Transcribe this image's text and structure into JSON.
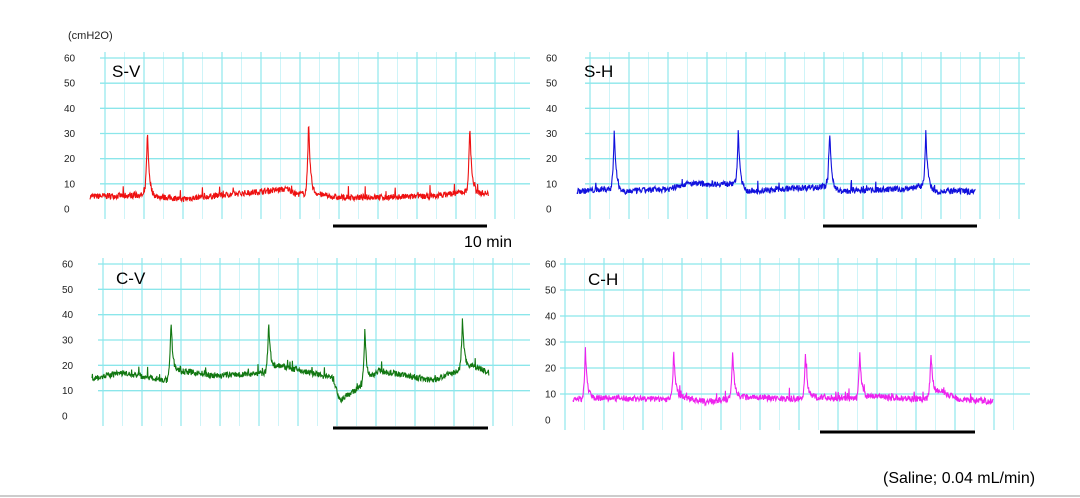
{
  "chart_data": {
    "type": "line",
    "unit_label": "(cmH2O)",
    "scale_bar_label": "10 min",
    "footnote": "(Saline; 0.04 mL/min)",
    "ylim": [
      0,
      60
    ],
    "yticks": [
      "0",
      "10",
      "20",
      "30",
      "40",
      "50",
      "60"
    ],
    "scale_bar_minutes": 10,
    "grid": true,
    "panels": [
      {
        "title": "S-V",
        "color": "#ee1111",
        "duration_min": 25.7,
        "baseline": [
          [
            0,
            5
          ],
          [
            3.5,
            5.5
          ],
          [
            4.2,
            5
          ],
          [
            6,
            4
          ],
          [
            12.8,
            8
          ],
          [
            13.2,
            6
          ],
          [
            14.6,
            6
          ],
          [
            16,
            4.5
          ],
          [
            22,
            5
          ],
          [
            24.3,
            7
          ],
          [
            25.7,
            6
          ]
        ],
        "spikes": [
          [
            3.7,
            32
          ],
          [
            14.1,
            35
          ],
          [
            24.5,
            34
          ]
        ]
      },
      {
        "title": "S-H",
        "color": "#1111dd",
        "duration_min": 25.7,
        "baseline": [
          [
            0,
            7
          ],
          [
            2.2,
            8
          ],
          [
            3,
            7
          ],
          [
            6,
            8
          ],
          [
            7,
            10
          ],
          [
            10.2,
            10
          ],
          [
            11,
            7
          ],
          [
            16,
            9
          ],
          [
            17,
            7
          ],
          [
            21,
            8
          ],
          [
            22.3,
            9
          ],
          [
            23,
            7
          ],
          [
            25.7,
            7
          ]
        ],
        "spikes": [
          [
            2.4,
            32
          ],
          [
            10.4,
            31
          ],
          [
            16.3,
            31
          ],
          [
            22.5,
            32
          ]
        ]
      },
      {
        "title": "C-V",
        "color": "#117711",
        "duration_min": 25.6,
        "baseline": [
          [
            0,
            15
          ],
          [
            2,
            17
          ],
          [
            4.9,
            14
          ],
          [
            5.5,
            18
          ],
          [
            8,
            16
          ],
          [
            11.2,
            17
          ],
          [
            12,
            20
          ],
          [
            15.5,
            15
          ],
          [
            16,
            6
          ],
          [
            17.4,
            12
          ],
          [
            18.5,
            18
          ],
          [
            22,
            14
          ],
          [
            23.7,
            18
          ],
          [
            24.5,
            20
          ],
          [
            25.6,
            17
          ]
        ],
        "spikes": [
          [
            5.1,
            38
          ],
          [
            11.4,
            37
          ],
          [
            17.6,
            34
          ],
          [
            23.9,
            39
          ]
        ]
      },
      {
        "title": "C-H",
        "color": "#ee22ee",
        "duration_min": 27.1,
        "baseline": [
          [
            0,
            8
          ],
          [
            1.5,
            8.5
          ],
          [
            6.3,
            8
          ],
          [
            7,
            9
          ],
          [
            8.5,
            7
          ],
          [
            10,
            8
          ],
          [
            11,
            9
          ],
          [
            14.8,
            8
          ],
          [
            15.3,
            9
          ],
          [
            18.3,
            8
          ],
          [
            19,
            9
          ],
          [
            22.8,
            8
          ],
          [
            23.6,
            11
          ],
          [
            25,
            8
          ],
          [
            27.1,
            7
          ]
        ],
        "spikes": [
          [
            0.8,
            27
          ],
          [
            6.5,
            27
          ],
          [
            10.3,
            27
          ],
          [
            15,
            26
          ],
          [
            18.5,
            26
          ],
          [
            23.1,
            26
          ]
        ]
      }
    ]
  }
}
